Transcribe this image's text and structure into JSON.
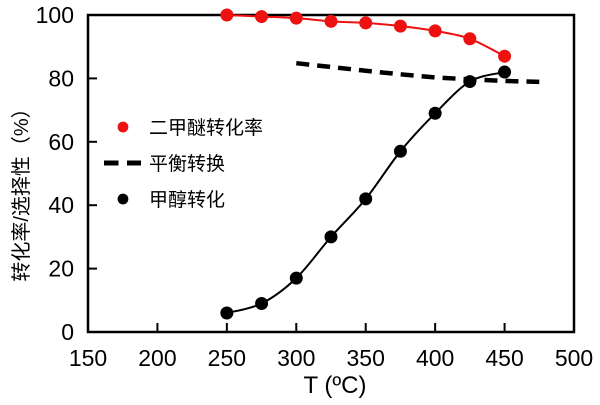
{
  "chart_data": {
    "type": "line",
    "title": "",
    "xlabel": "T (ºC)",
    "ylabel": "转化率/选择性（%）",
    "xlim": [
      150,
      500
    ],
    "ylim": [
      0,
      100
    ],
    "xticks": [
      150,
      200,
      250,
      300,
      350,
      400,
      450,
      500
    ],
    "yticks": [
      0,
      20,
      40,
      60,
      80,
      100
    ],
    "grid": false,
    "legend_position": "inside-upper-left",
    "series": [
      {
        "name": "二甲醚转化率",
        "type": "line-markers",
        "marker": "circle",
        "color": "#ee1111",
        "x": [
          250,
          275,
          300,
          325,
          350,
          375,
          400,
          425,
          450
        ],
        "y": [
          100,
          99.5,
          99,
          98,
          97.5,
          96.5,
          95,
          92.5,
          87
        ]
      },
      {
        "name": "平衡转换",
        "type": "dashed-line",
        "marker": "none",
        "color": "#000000",
        "x": [
          300,
          325,
          350,
          375,
          400,
          425,
          450,
          475
        ],
        "y": [
          84.8,
          83.6,
          82.4,
          81.3,
          80.3,
          79.7,
          79.2,
          78.9
        ]
      },
      {
        "name": "甲醇转化",
        "type": "line-markers",
        "marker": "circle",
        "color": "#000000",
        "x": [
          250,
          275,
          300,
          325,
          350,
          375,
          400,
          425,
          450
        ],
        "y": [
          6,
          9,
          17,
          30,
          42,
          57,
          69,
          79,
          82
        ]
      }
    ]
  }
}
